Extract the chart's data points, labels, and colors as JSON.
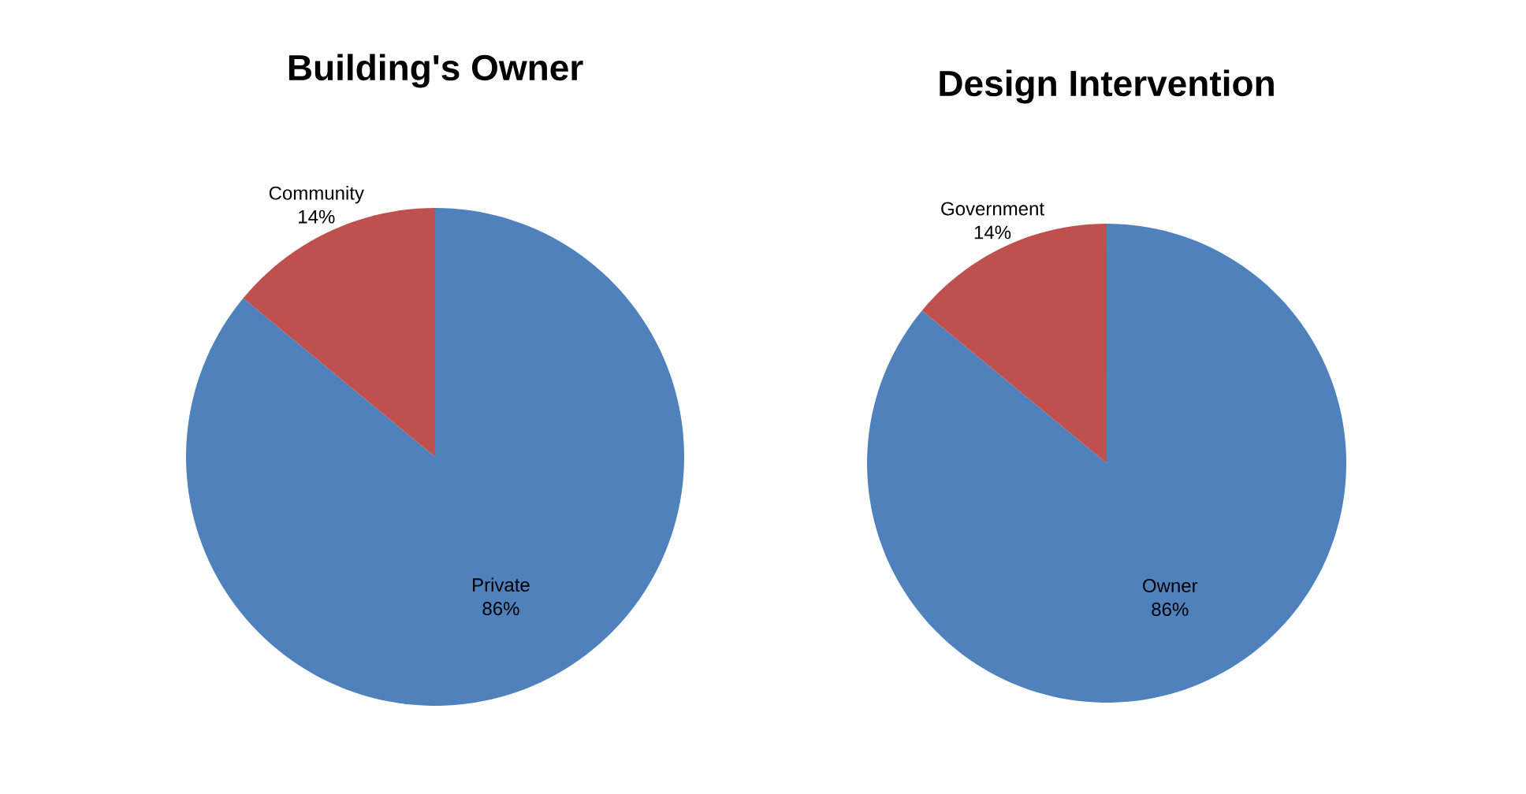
{
  "chart_data": [
    {
      "type": "pie",
      "title": "Building's Owner",
      "categories": [
        "Private",
        "Community"
      ],
      "values": [
        86,
        14
      ],
      "colors": [
        "#4f81bd",
        "#c0504d"
      ],
      "value_labels": [
        "86%",
        "14%"
      ]
    },
    {
      "type": "pie",
      "title": "Design Intervention",
      "categories": [
        "Owner",
        "Government"
      ],
      "values": [
        86,
        14
      ],
      "colors": [
        "#4f81bd",
        "#c0504d"
      ],
      "value_labels": [
        "86%",
        "14%"
      ]
    }
  ]
}
